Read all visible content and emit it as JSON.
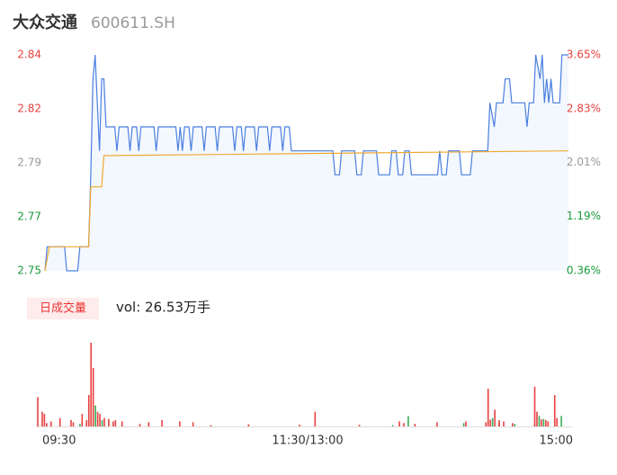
{
  "header": {
    "name": "大众交通",
    "code": "600611.SH"
  },
  "chart_data": [
    {
      "type": "line",
      "xlim": [
        0,
        240
      ],
      "xticks": [
        {
          "value": 0,
          "label": "09:30"
        },
        {
          "value": 120,
          "label": "11:30/13:00"
        },
        {
          "value": 240,
          "label": "15:00"
        }
      ],
      "ylim": [
        2.75,
        2.84
      ],
      "yticks": [
        {
          "value": 2.84,
          "label": "2.84"
        },
        {
          "value": 2.8175,
          "label": "2.82"
        },
        {
          "value": 2.795,
          "label": "2.79"
        },
        {
          "value": 2.7725,
          "label": "2.77"
        },
        {
          "value": 2.75,
          "label": "2.75"
        }
      ],
      "y2lim": [
        0.36,
        3.65
      ],
      "y2ticks": [
        {
          "value": 3.65,
          "label": "3.65%"
        },
        {
          "value": 2.83,
          "label": "2.83%"
        },
        {
          "value": 2.01,
          "label": "2.01%"
        },
        {
          "value": 1.19,
          "label": "1.19%"
        },
        {
          "value": 0.36,
          "label": "0.36%"
        }
      ],
      "series": [
        {
          "color": "#4a7fe0",
          "x": [
            0,
            1,
            9,
            10,
            15,
            16,
            20,
            21,
            22,
            23,
            24,
            25,
            26,
            27,
            28,
            32,
            33,
            34,
            38,
            39,
            40,
            42,
            43,
            44,
            50,
            51,
            52,
            60,
            61,
            62,
            63,
            64,
            66,
            67,
            68,
            72,
            73,
            74,
            78,
            79,
            80,
            86,
            87,
            88,
            90,
            91,
            92,
            96,
            97,
            98,
            102,
            103,
            104,
            108,
            109,
            110,
            112,
            113,
            132,
            133,
            135,
            136,
            142,
            143,
            145,
            146,
            152,
            153,
            158,
            159,
            161,
            162,
            164,
            165,
            167,
            168,
            180,
            181,
            182,
            184,
            185,
            190,
            191,
            195,
            196,
            203,
            204,
            206,
            207,
            210,
            211,
            213,
            214,
            220,
            221,
            222,
            224,
            225,
            227,
            228,
            229,
            230,
            231,
            232,
            233,
            236,
            237,
            240
          ],
          "values": [
            2.75,
            2.76,
            2.76,
            2.75,
            2.75,
            2.76,
            2.76,
            2.79,
            2.83,
            2.84,
            2.82,
            2.8,
            2.83,
            2.83,
            2.81,
            2.81,
            2.8,
            2.81,
            2.81,
            2.8,
            2.81,
            2.81,
            2.8,
            2.81,
            2.81,
            2.8,
            2.81,
            2.81,
            2.8,
            2.81,
            2.8,
            2.81,
            2.81,
            2.8,
            2.81,
            2.81,
            2.8,
            2.81,
            2.81,
            2.8,
            2.81,
            2.81,
            2.8,
            2.81,
            2.81,
            2.8,
            2.81,
            2.81,
            2.8,
            2.81,
            2.81,
            2.8,
            2.81,
            2.81,
            2.8,
            2.81,
            2.81,
            2.8,
            2.8,
            2.79,
            2.79,
            2.8,
            2.8,
            2.79,
            2.79,
            2.8,
            2.8,
            2.79,
            2.79,
            2.8,
            2.8,
            2.79,
            2.79,
            2.8,
            2.8,
            2.79,
            2.79,
            2.8,
            2.79,
            2.79,
            2.8,
            2.8,
            2.79,
            2.79,
            2.8,
            2.8,
            2.82,
            2.81,
            2.82,
            2.82,
            2.83,
            2.83,
            2.82,
            2.82,
            2.81,
            2.82,
            2.82,
            2.84,
            2.83,
            2.84,
            2.82,
            2.83,
            2.82,
            2.83,
            2.82,
            2.82,
            2.84,
            2.84
          ]
        },
        {
          "color": "#f0a830",
          "x": [
            0,
            2,
            20,
            21,
            26,
            27,
            240
          ],
          "values": [
            2.75,
            2.76,
            2.76,
            2.785,
            2.785,
            2.798,
            2.8
          ]
        }
      ]
    },
    {
      "type": "bar",
      "label": "日成交量",
      "summary": "vol: 26.53万手",
      "xlim": [
        0,
        240
      ],
      "ylim": [
        0,
        20000
      ],
      "series": [
        {
          "color": "#e8403f",
          "x": [
            0,
            2,
            3,
            4,
            6,
            10,
            15,
            16,
            20,
            22,
            23,
            24,
            25,
            27,
            28,
            30,
            32,
            34,
            35,
            38,
            46,
            50,
            56,
            64,
            70,
            78,
            95,
            118,
            125,
            145,
            163,
            165,
            170,
            180,
            193,
            202,
            204,
            208,
            224,
            203,
            206,
            208,
            210,
            214,
            224,
            225,
            227,
            229,
            230,
            233,
            234
          ],
          "values": [
            7000,
            3500,
            3000,
            800,
            1200,
            2000,
            1500,
            1000,
            3000,
            1500,
            7500,
            20000,
            14000,
            3500,
            3000,
            2000,
            1800,
            1200,
            1500,
            1200,
            600,
            1000,
            1500,
            1200,
            1000,
            300,
            500,
            400,
            3500,
            400,
            1200,
            800,
            600,
            1000,
            1200,
            1000,
            1600,
            600,
            500,
            9000,
            4000,
            1500,
            1200,
            800,
            9500,
            3500,
            1700,
            1500,
            1200,
            7500,
            2000
          ]
        },
        {
          "color": "#3cab5a",
          "x": [
            19,
            26,
            29,
            160,
            167,
            192,
            205,
            215,
            226,
            228,
            236
          ],
          "values": [
            600,
            5000,
            1500,
            300,
            2500,
            800,
            2000,
            600,
            2500,
            1800,
            2500
          ]
        }
      ]
    }
  ]
}
